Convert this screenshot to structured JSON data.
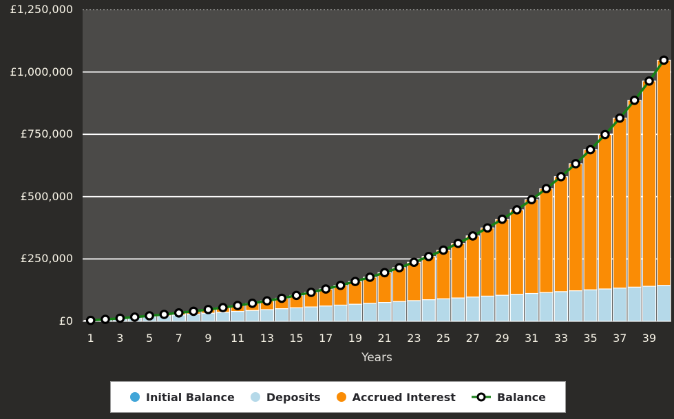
{
  "chart_data": {
    "type": "stacked-bar+line",
    "title": "",
    "xlabel": "Years",
    "ylabel": "",
    "ylim": [
      0,
      1250000
    ],
    "currency": "GBP",
    "grid": "horizontal white gridlines every 250000, dotted top border",
    "legend_position": "bottom",
    "ytick_labels": [
      "£0",
      "£250,000",
      "£500,000",
      "£750,000",
      "£1,000,000",
      "£1,250,000"
    ],
    "xtick_labels": [
      "1",
      "3",
      "5",
      "7",
      "9",
      "11",
      "13",
      "15",
      "17",
      "19",
      "21",
      "23",
      "25",
      "27",
      "29",
      "31",
      "33",
      "35",
      "37",
      "39"
    ],
    "years": [
      1,
      2,
      3,
      4,
      5,
      6,
      7,
      8,
      9,
      10,
      11,
      12,
      13,
      14,
      15,
      16,
      17,
      18,
      19,
      20,
      21,
      22,
      23,
      24,
      25,
      26,
      27,
      28,
      29,
      30,
      31,
      32,
      33,
      34,
      35,
      36,
      37,
      38,
      39,
      40
    ],
    "series": [
      {
        "name": "Initial Balance",
        "type": "bar",
        "color": "#41a5d8",
        "values": [
          0,
          0,
          0,
          0,
          0,
          0,
          0,
          0,
          0,
          0,
          0,
          0,
          0,
          0,
          0,
          0,
          0,
          0,
          0,
          0,
          0,
          0,
          0,
          0,
          0,
          0,
          0,
          0,
          0,
          0,
          0,
          0,
          0,
          0,
          0,
          0,
          0,
          0,
          0,
          0
        ]
      },
      {
        "name": "Deposits",
        "type": "bar",
        "color": "#b5d9e9",
        "values": [
          3600,
          7200,
          10800,
          14400,
          18000,
          21600,
          25200,
          28800,
          32400,
          36000,
          39600,
          43200,
          46800,
          50400,
          54000,
          57600,
          61200,
          64800,
          68400,
          72000,
          75600,
          79200,
          82800,
          86400,
          90000,
          93600,
          97200,
          100800,
          104400,
          108000,
          111600,
          115200,
          118800,
          122400,
          126000,
          129600,
          133200,
          136800,
          140400,
          144000
        ]
      },
      {
        "name": "Accrued Interest",
        "type": "bar",
        "color": "#fa8c05",
        "values": [
          135,
          580,
          1361,
          2505,
          4043,
          6008,
          8434,
          11361,
          14829,
          18884,
          23575,
          28953,
          35077,
          42008,
          49812,
          58564,
          68340,
          79227,
          91317,
          104708,
          119510,
          135839,
          153822,
          173597,
          195311,
          219127,
          245219,
          273774,
          304999,
          339114,
          376360,
          416995,
          461302,
          509586,
          562176,
          619429,
          681734,
          749508,
          823207,
          903321
        ]
      },
      {
        "name": "Balance",
        "type": "line",
        "color": "#178017",
        "marker": "white-circle-black-ring",
        "values": [
          3735,
          7780,
          12161,
          16905,
          22043,
          27608,
          33634,
          40161,
          47229,
          54884,
          63175,
          72153,
          81877,
          92408,
          103812,
          116164,
          129540,
          144027,
          159717,
          176708,
          195110,
          215039,
          236622,
          259997,
          285311,
          312727,
          342419,
          374574,
          409399,
          447114,
          487960,
          532195,
          580102,
          631986,
          688176,
          749029,
          814934,
          886308,
          963607,
          1047321
        ]
      }
    ]
  },
  "colors": {
    "page_background": "#2b2a28",
    "plot_background": "#4b4a48",
    "gridline": "#ffffff",
    "axis_text": "#f7f3e6",
    "legend_background": "#ffffff",
    "legend_text": "#26262b",
    "bar_separator": "#ffffff",
    "line": "#178017",
    "marker_fill": "#ffffff",
    "marker_ring": "#000000"
  }
}
